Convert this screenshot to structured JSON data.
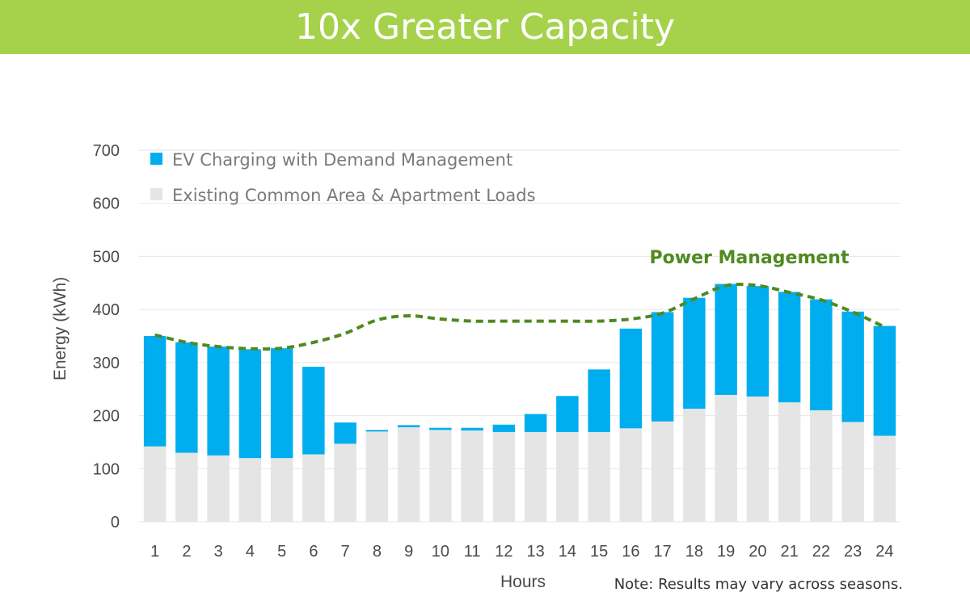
{
  "page_title": "10x Greater Capacity",
  "colors": {
    "banner": "#a6d14b",
    "ev": "#00aeef",
    "existing": "#e5e5e5",
    "line": "#4f8a1f",
    "grid": "#e6e6e6"
  },
  "note": "Note: Results may vary across seasons.",
  "chart_data": {
    "type": "bar",
    "stacked": true,
    "categories": [
      "1",
      "2",
      "3",
      "4",
      "5",
      "6",
      "7",
      "8",
      "9",
      "10",
      "11",
      "12",
      "13",
      "14",
      "15",
      "16",
      "17",
      "18",
      "19",
      "20",
      "21",
      "22",
      "23",
      "24"
    ],
    "series": [
      {
        "name": "Existing Common Area & Apartment Loads",
        "color": "#e5e5e5",
        "values": [
          142,
          130,
          125,
          120,
          120,
          127,
          147,
          170,
          178,
          173,
          172,
          169,
          169,
          169,
          169,
          176,
          189,
          213,
          239,
          236,
          225,
          210,
          188,
          162
        ]
      },
      {
        "name": "EV Charging with Demand Management",
        "color": "#00aeef",
        "values": [
          208,
          208,
          205,
          205,
          207,
          165,
          40,
          3,
          4,
          4,
          5,
          14,
          34,
          68,
          118,
          188,
          206,
          209,
          209,
          208,
          208,
          209,
          208,
          207
        ]
      }
    ],
    "line": {
      "name": "Power Management",
      "style": "dashed",
      "color": "#4f8a1f",
      "values": [
        352,
        338,
        330,
        326,
        327,
        338,
        355,
        380,
        388,
        382,
        378,
        378,
        378,
        378,
        378,
        382,
        393,
        420,
        445,
        445,
        432,
        418,
        395,
        367
      ]
    },
    "xlabel": "Hours",
    "ylabel": "Energy (kWh)",
    "ylim": [
      0,
      700
    ],
    "yticks": [
      0,
      100,
      200,
      300,
      400,
      500,
      600,
      700
    ],
    "grid": true,
    "legend_position": "top-left"
  }
}
